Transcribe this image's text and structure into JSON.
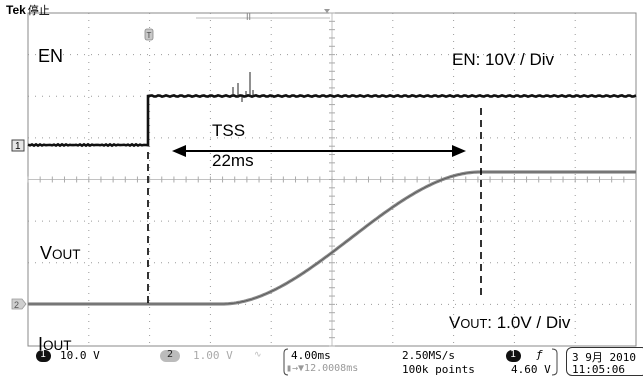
{
  "header": {
    "brand": "Tek",
    "status": "停止"
  },
  "annotations": {
    "en_label": "EN",
    "en_scale_label": "EN: 10V / Div",
    "tss_label": "TSS",
    "tss_value": "22ms",
    "vout_label_main": "V",
    "vout_label_sub": "OUT",
    "vout_scale_main": "V",
    "vout_scale_sub": "OUT",
    "vout_scale_rest": ": 1.0V / Div",
    "iout_label_main": "I",
    "iout_label_sub": "OUT"
  },
  "markers": {
    "ch1": "1",
    "ch2": "2",
    "trigger": "T"
  },
  "status_bar": {
    "ch1_num": "1",
    "ch1_scale": "10.0 V",
    "ch2_num": "2",
    "ch2_scale": "1.00 V",
    "timebase": "4.00ms",
    "sample_rate": "2.50MS/s",
    "position": "▮→▼12.0008ms",
    "record_length": "100k points",
    "trigger_ch": "1",
    "trigger_slope": "ƒ",
    "trigger_level": "4.60 V",
    "date": "3 9月 2010",
    "time": "11:05:06"
  },
  "colors": {
    "trace": "#111111",
    "vout_trace": "#8a8a8a",
    "grid": "#b8b8b8",
    "background": "#ffffff"
  }
}
